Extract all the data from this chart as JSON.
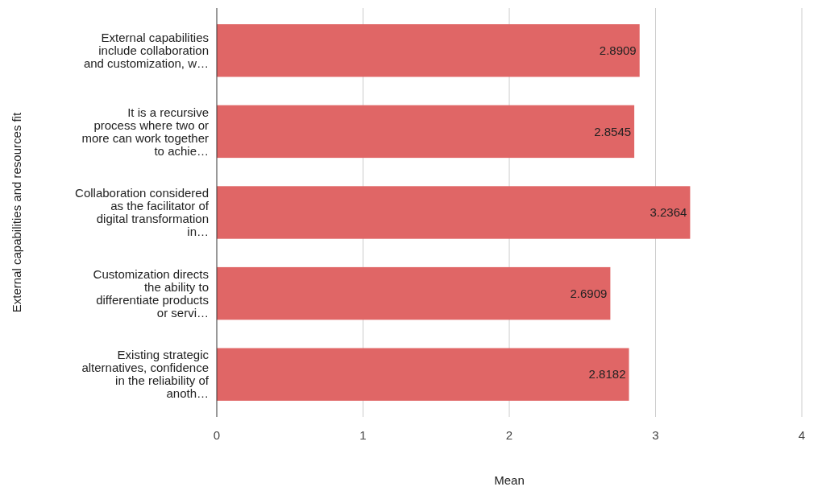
{
  "chart_data": {
    "type": "bar",
    "orientation": "horizontal",
    "categories": [
      "External capabilities include collaboration and customization, w…",
      "It is a recursive process where two or more can work together to achie…",
      "Collaboration considered as the facilitator of digital transformation in…",
      "Customization directs the ability to differentiate products or servi…",
      "Existing strategic alternatives, confidence in the reliability of anoth…"
    ],
    "values": [
      2.8909,
      2.8545,
      3.2364,
      2.6909,
      2.8182
    ],
    "color": "#e06666",
    "data_labels": true,
    "xlim": [
      0,
      4
    ],
    "xticks": [
      0,
      1,
      2,
      3,
      4
    ],
    "grid": "x",
    "xlabel": "Mean",
    "ylabel": "External capabilities and resources fit"
  }
}
